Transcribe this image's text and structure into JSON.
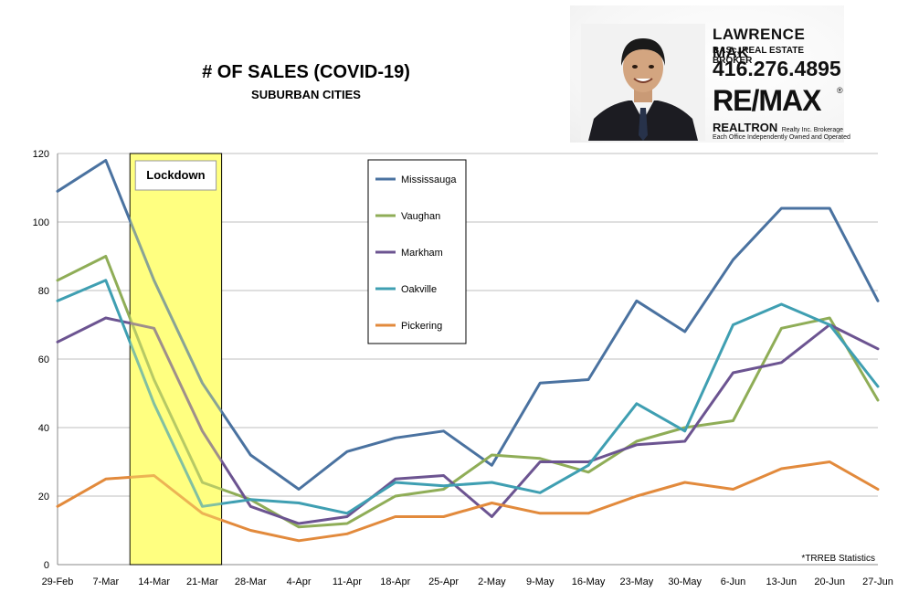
{
  "chart_data": {
    "type": "line",
    "title": "# OF SALES (COVID-19)",
    "subtitle": "SUBURBAN CITIES",
    "categories": [
      "29-Feb",
      "7-Mar",
      "14-Mar",
      "21-Mar",
      "28-Mar",
      "4-Apr",
      "11-Apr",
      "18-Apr",
      "25-Apr",
      "2-May",
      "9-May",
      "16-May",
      "23-May",
      "30-May",
      "6-Jun",
      "13-Jun",
      "20-Jun",
      "27-Jun"
    ],
    "ylim": [
      0,
      120
    ],
    "yticks": [
      0,
      20,
      40,
      60,
      80,
      100,
      120
    ],
    "grid": true,
    "legend_position": "top-center",
    "series": [
      {
        "name": "Mississauga",
        "color": "#4a72a0",
        "values": [
          109,
          118,
          83,
          53,
          32,
          22,
          33,
          37,
          39,
          29,
          53,
          54,
          77,
          68,
          89,
          104,
          104,
          77
        ]
      },
      {
        "name": "Vaughan",
        "color": "#8fad57",
        "values": [
          83,
          90,
          54,
          24,
          19,
          11,
          12,
          20,
          22,
          32,
          31,
          27,
          36,
          40,
          42,
          69,
          72,
          48
        ]
      },
      {
        "name": "Markham",
        "color": "#6c5491",
        "values": [
          65,
          72,
          69,
          39,
          17,
          12,
          14,
          25,
          26,
          14,
          30,
          30,
          35,
          36,
          56,
          59,
          70,
          63
        ]
      },
      {
        "name": "Oakville",
        "color": "#3f9fb2",
        "values": [
          77,
          83,
          47,
          17,
          19,
          18,
          15,
          24,
          23,
          24,
          21,
          29,
          47,
          39,
          70,
          76,
          70,
          52
        ]
      },
      {
        "name": "Pickering",
        "color": "#e28a3c",
        "values": [
          17,
          25,
          26,
          15,
          10,
          7,
          9,
          14,
          14,
          18,
          15,
          15,
          20,
          24,
          22,
          28,
          30,
          22
        ]
      }
    ],
    "annotations": [
      {
        "text": "Lockdown",
        "highlight_color": "#ffff80",
        "x_start": "7-Mar",
        "x_end": "21-Mar"
      }
    ],
    "source_note": "*TRREB Statistics"
  },
  "agent": {
    "name": "LAWRENCE MAK",
    "role": "BASc, REAL ESTATE BROKER",
    "phone": "416.276.4895",
    "brand": "RE/MAX",
    "brand_mark": "®",
    "brokerage": "REALTRON",
    "brokerage_sub": "Realty Inc. Brokerage",
    "note": "Each Office Independently Owned and Operated"
  }
}
